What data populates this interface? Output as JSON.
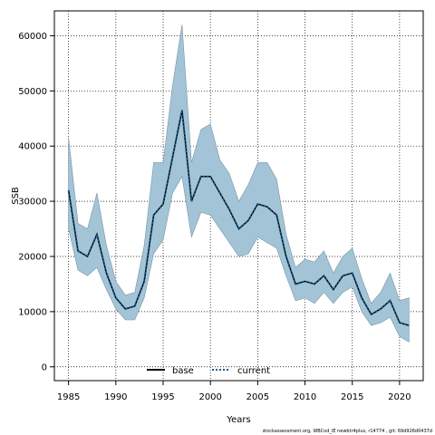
{
  "chart_data": {
    "type": "line",
    "title": "",
    "xlabel": "Years",
    "ylabel": "SSB",
    "xlim": [
      1983.5,
      2022.5
    ],
    "ylim": [
      -2500,
      64500
    ],
    "xticks": [
      1985,
      1990,
      1995,
      2000,
      2005,
      2010,
      2015,
      2020
    ],
    "yticks": [
      0,
      10000,
      20000,
      30000,
      40000,
      50000,
      60000
    ],
    "grid": true,
    "legend_placement": "bottom",
    "x": [
      1985,
      1986,
      1987,
      1988,
      1989,
      1990,
      1991,
      1992,
      1993,
      1994,
      1995,
      1996,
      1997,
      1998,
      1999,
      2000,
      2001,
      2002,
      2003,
      2004,
      2005,
      2006,
      2007,
      2008,
      2009,
      2010,
      2011,
      2012,
      2013,
      2014,
      2015,
      2016,
      2017,
      2018,
      2019,
      2020,
      2021
    ],
    "series": [
      {
        "name": "base",
        "style": "solid",
        "color": "#000000",
        "values": [
          32000,
          21000,
          20000,
          24000,
          17000,
          12500,
          10500,
          11000,
          15500,
          27500,
          29500,
          38000,
          46500,
          30000,
          34500,
          34500,
          31500,
          28500,
          25000,
          26500,
          29500,
          29000,
          27500,
          20000,
          15000,
          15500,
          15000,
          16500,
          14000,
          16500,
          17000,
          12500,
          9500,
          10500,
          12000,
          8000,
          7500
        ]
      },
      {
        "name": "current",
        "style": "dotted",
        "color": "#1a5b8c",
        "values": [
          32000,
          21000,
          20000,
          24000,
          17000,
          12500,
          10500,
          11000,
          15500,
          27500,
          29500,
          38000,
          46500,
          30000,
          34500,
          34500,
          31500,
          28500,
          25000,
          26500,
          29500,
          29000,
          27500,
          20000,
          15000,
          15500,
          15000,
          16500,
          14000,
          16500,
          17000,
          12500,
          9500,
          10500,
          12000,
          8000,
          7500
        ]
      }
    ],
    "confidence_band": {
      "color": "#a3c4d6",
      "upper": [
        41500,
        26000,
        25000,
        31500,
        22000,
        15500,
        13000,
        13500,
        22000,
        37000,
        37000,
        51000,
        62000,
        37000,
        43000,
        44000,
        37500,
        35000,
        30000,
        33000,
        37000,
        37000,
        34000,
        24000,
        18000,
        19500,
        19000,
        21000,
        17000,
        20000,
        21500,
        16000,
        11500,
        13500,
        17000,
        12000,
        12500
      ],
      "lower": [
        25000,
        17500,
        16500,
        18000,
        14000,
        10500,
        8500,
        8500,
        12500,
        20500,
        23000,
        31500,
        34500,
        23500,
        28000,
        27500,
        25000,
        22500,
        20000,
        20500,
        23500,
        22500,
        21500,
        16500,
        12000,
        12500,
        11500,
        13500,
        11500,
        13500,
        14500,
        10000,
        7500,
        8000,
        9000,
        5500,
        4500
      ]
    }
  },
  "legend": {
    "base_label": "base",
    "current_label": "current"
  },
  "footer_text": "stockassessment.org, WBCod_IE newbtr4plus, r14774 , git: 69d926d0437d"
}
